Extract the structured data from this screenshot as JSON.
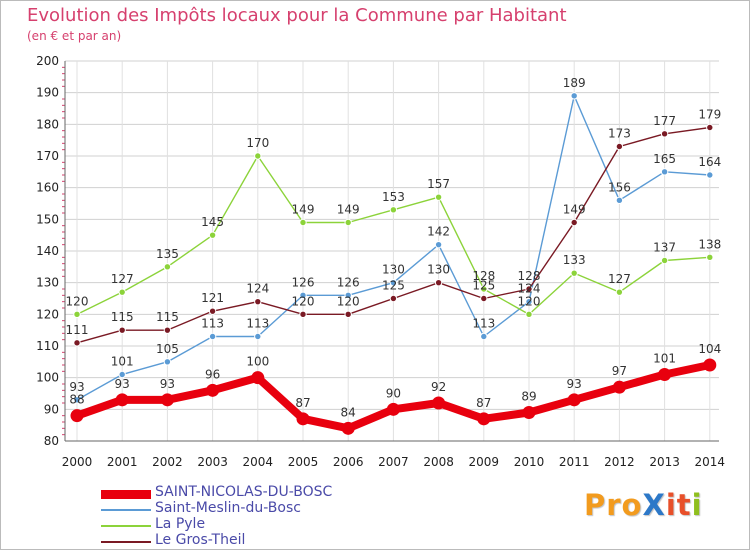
{
  "header": {
    "title": "Evolution des Impôts locaux pour la Commune par Habitant",
    "subtitle": "(en € et par an)"
  },
  "logo": {
    "text": "ProXiti",
    "parts": [
      "Pro",
      "X",
      "it",
      "i"
    ]
  },
  "chart_data": {
    "type": "line",
    "title": "Evolution des Impôts locaux pour la Commune par Habitant",
    "subtitle": "(en € et par an)",
    "xlabel": "",
    "ylabel": "",
    "categories": [
      "2000",
      "2001",
      "2002",
      "2003",
      "2004",
      "2005",
      "2006",
      "2007",
      "2008",
      "2009",
      "2010",
      "2011",
      "2012",
      "2013",
      "2014"
    ],
    "ylim": [
      80,
      200
    ],
    "yticks": [
      80,
      90,
      100,
      110,
      120,
      130,
      140,
      150,
      160,
      170,
      180,
      190,
      200
    ],
    "grid": true,
    "legend_position": "bottom-left",
    "series": [
      {
        "name": "SAINT-NICOLAS-DU-BOSC",
        "color": "#e8000e",
        "emphasis": "thick",
        "values": [
          88,
          93,
          93,
          96,
          100,
          87,
          84,
          90,
          92,
          87,
          89,
          93,
          97,
          101,
          104
        ]
      },
      {
        "name": "Saint-Meslin-du-Bosc",
        "color": "#5b9bd5",
        "emphasis": "normal",
        "values": [
          93,
          101,
          105,
          113,
          113,
          126,
          126,
          130,
          142,
          113,
          124,
          189,
          156,
          165,
          164
        ]
      },
      {
        "name": "La Pyle",
        "color": "#8cd33a",
        "emphasis": "normal",
        "values": [
          120,
          127,
          135,
          145,
          170,
          149,
          149,
          153,
          157,
          128,
          120,
          133,
          127,
          137,
          138
        ]
      },
      {
        "name": "Le Gros-Theil",
        "color": "#7a1a24",
        "emphasis": "normal",
        "values": [
          111,
          115,
          115,
          121,
          124,
          120,
          120,
          125,
          130,
          125,
          128,
          149,
          173,
          177,
          179
        ]
      }
    ]
  }
}
